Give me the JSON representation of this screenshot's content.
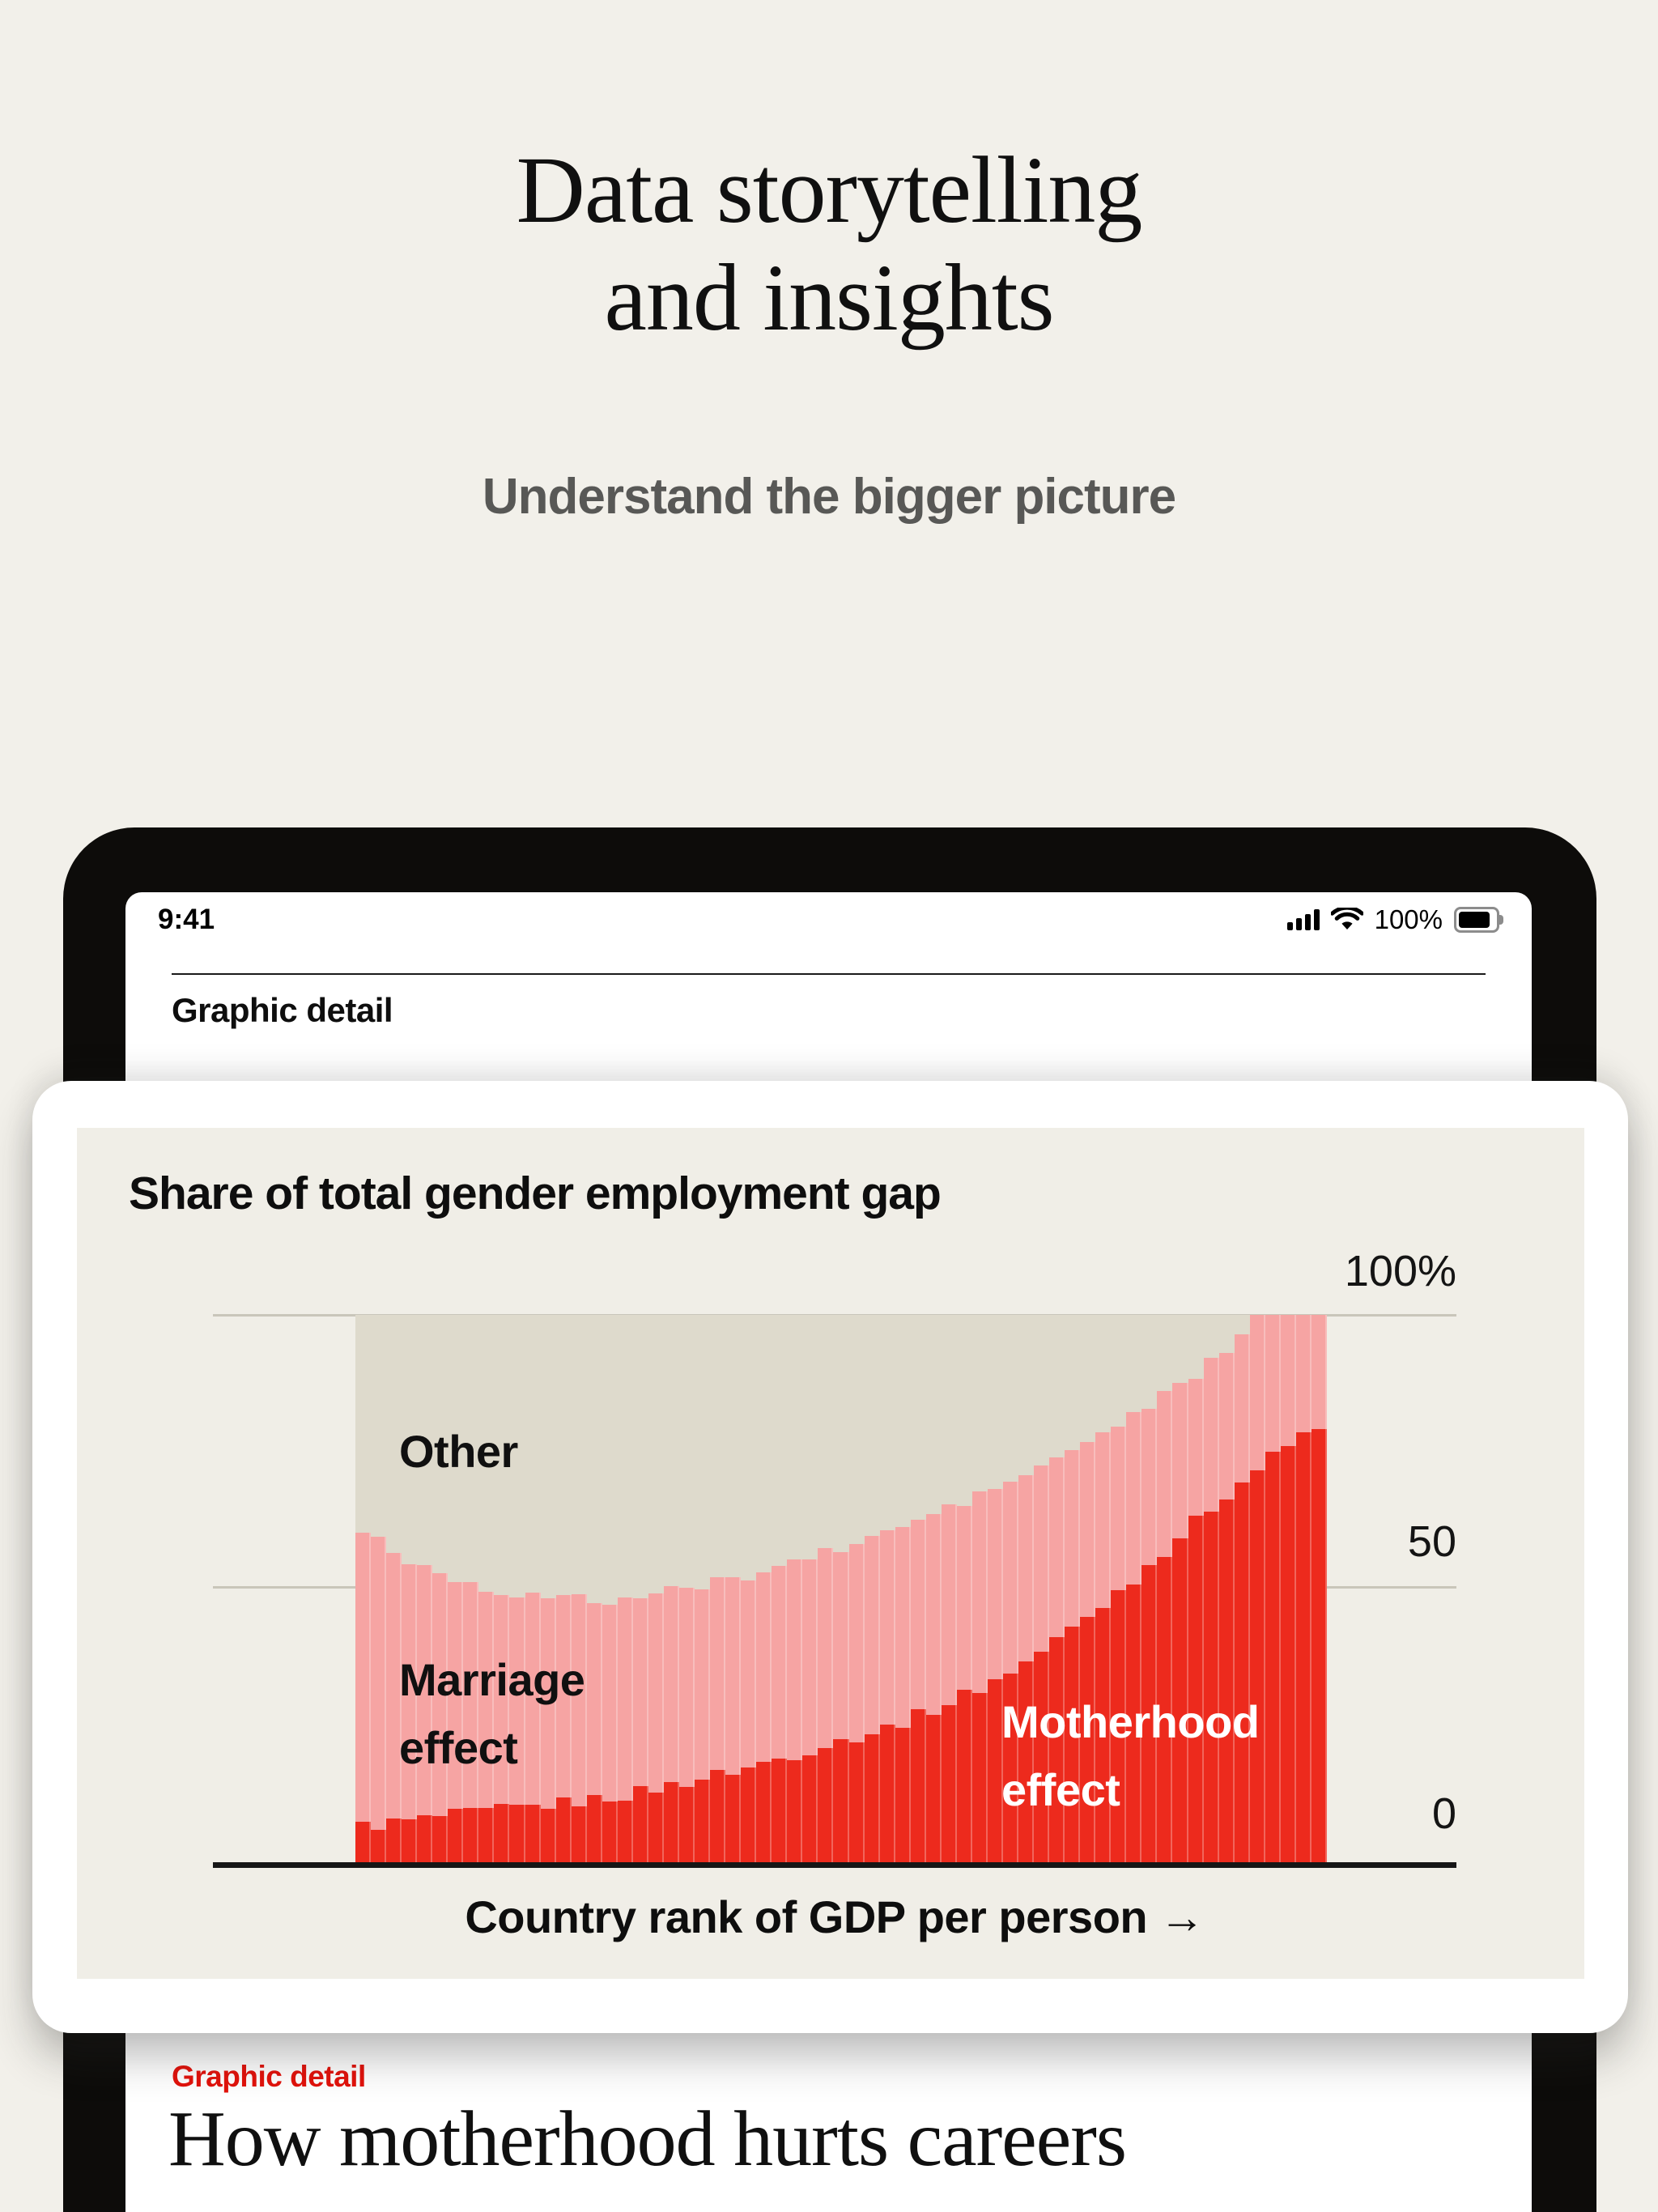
{
  "page": {
    "title_line1": "Data storytelling",
    "title_line2": "and insights",
    "subtitle": "Understand the bigger picture"
  },
  "device": {
    "status_bar": {
      "time": "9:41",
      "battery_label": "100%",
      "icons": [
        "cellular-signal-icon",
        "wifi-icon",
        "battery-icon"
      ]
    },
    "section_header": "Graphic detail"
  },
  "card": {
    "chart_labels": {
      "other": "Other",
      "marriage_line1": "Marriage",
      "marriage_line2": "effect",
      "motherhood_line1": "Motherhood",
      "motherhood_line2": "effect"
    }
  },
  "article": {
    "kicker": "Graphic detail",
    "headline": "How motherhood hurts careers"
  },
  "colors": {
    "accent_red": "#E3120B",
    "motherhood_red": "#ED2A1D",
    "marriage_pink": "#F6A4A3",
    "other_grey": "#DEDACC",
    "panel_bg": "#F0EEE7",
    "page_bg": "#F2F0EA"
  },
  "chart_data": {
    "type": "area",
    "title": "Share of total gender employment gap",
    "xlabel": "Country rank of GDP per person →",
    "ylabel": "",
    "ylim": [
      0,
      100
    ],
    "yticks": [
      "100%",
      "50",
      "0"
    ],
    "grid": true,
    "legend_position": "none",
    "stack_order_bottom_to_top": [
      "Motherhood effect",
      "Marriage effect",
      "Other"
    ],
    "x_fraction_of_country_rank": [
      0,
      0.05,
      0.1,
      0.15,
      0.2,
      0.25,
      0.3,
      0.35,
      0.4,
      0.45,
      0.5,
      0.55,
      0.6,
      0.65,
      0.7,
      0.75,
      0.8,
      0.85,
      0.9,
      0.95,
      1
    ],
    "series": [
      {
        "name": "Motherhood effect",
        "color": "#ED2A1D",
        "cumulative_top_pct": [
          7,
          8,
          9,
          10,
          11,
          12,
          13.5,
          15.5,
          17.5,
          20,
          22.5,
          25,
          28.5,
          32.5,
          37.5,
          44,
          51,
          59,
          67,
          74,
          80
        ]
      },
      {
        "name": "Marriage effect",
        "color": "#F6A4A3",
        "cumulative_top_pct": [
          61,
          55,
          52,
          49.5,
          48.5,
          48,
          49,
          50.5,
          52.5,
          55,
          57.5,
          60.5,
          64,
          67.5,
          71.5,
          76,
          81,
          86.5,
          93,
          100,
          100
        ]
      },
      {
        "name": "Other",
        "color": "#DEDACC",
        "cumulative_top_pct": [
          100,
          100,
          100,
          100,
          100,
          100,
          100,
          100,
          100,
          100,
          100,
          100,
          100,
          100,
          100,
          100,
          100,
          100,
          100,
          100,
          100
        ]
      }
    ],
    "n_bars": 63,
    "annotations": [
      "Other",
      "Marriage effect",
      "Motherhood effect"
    ]
  }
}
